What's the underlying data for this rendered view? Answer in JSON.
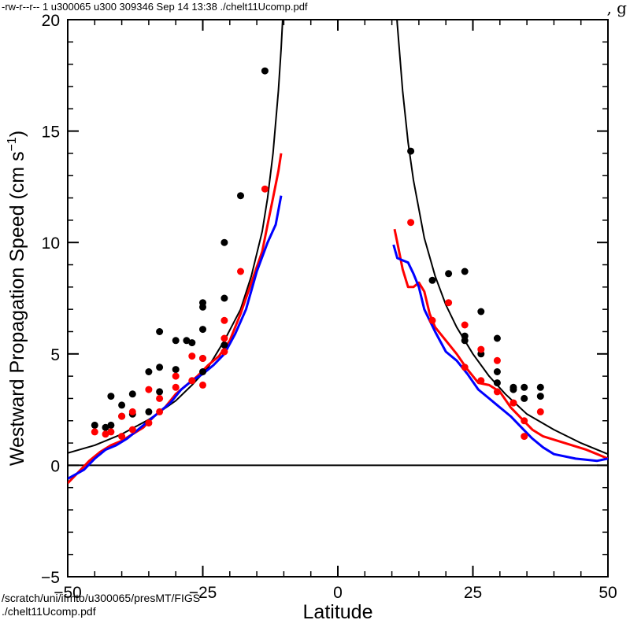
{
  "header": {
    "file_info": "-rw-r--r-- 1 u300065 u300 309346 Sep 14 13:38 ./chelt11Ucomp.pdf",
    "corner_glyph": ", g"
  },
  "footer": {
    "path_line1": "/scratch/uni/ifmto/u300065/presMT/FIGS",
    "path_line2": "./chelt11Ucomp.pdf"
  },
  "chart_data": {
    "type": "line",
    "xlabel": "Latitude",
    "ylabel": "Westward Propagation Speed (cm s",
    "ylabel_superscript": "−1",
    "ylabel_close": ")",
    "xlim": [
      -50,
      50
    ],
    "ylim": [
      -5,
      20
    ],
    "xticks": [
      -50,
      -25,
      0,
      25,
      50
    ],
    "xtick_labels": [
      "−50",
      "−25",
      "0",
      "25",
      "50"
    ],
    "yticks": [
      -5,
      0,
      5,
      10,
      15,
      20
    ],
    "ytick_labels": [
      "−5",
      "0",
      "5",
      "10",
      "15",
      "20"
    ],
    "zero_line": true,
    "colors": {
      "theory": "#000000",
      "black_points": "#000000",
      "red": "#ff0000",
      "blue": "#0000ff"
    },
    "series": [
      {
        "kind": "theory-curve-south",
        "color": "#000000",
        "points": [
          [
            -50,
            0.55
          ],
          [
            -45,
            0.9
          ],
          [
            -40,
            1.4
          ],
          [
            -35,
            2.05
          ],
          [
            -30,
            2.9
          ],
          [
            -27,
            3.6
          ],
          [
            -24,
            4.4
          ],
          [
            -21,
            5.6
          ],
          [
            -18,
            7.0
          ],
          [
            -16,
            8.5
          ],
          [
            -14,
            10.5
          ],
          [
            -13,
            12.0
          ],
          [
            -12,
            14.0
          ],
          [
            -11,
            16.8
          ],
          [
            -10.5,
            18.7
          ],
          [
            -10,
            21.0
          ]
        ]
      },
      {
        "kind": "theory-curve-north",
        "color": "#000000",
        "points": [
          [
            10.7,
            21.0
          ],
          [
            11,
            19.8
          ],
          [
            12,
            16.8
          ],
          [
            13,
            14.5
          ],
          [
            14,
            12.8
          ],
          [
            16,
            10.2
          ],
          [
            18,
            8.5
          ],
          [
            20,
            7.2
          ],
          [
            22,
            6.2
          ],
          [
            25,
            5.0
          ],
          [
            28,
            4.0
          ],
          [
            31,
            3.2
          ],
          [
            35,
            2.3
          ],
          [
            40,
            1.6
          ],
          [
            45,
            1.0
          ],
          [
            50,
            0.5
          ]
        ]
      },
      {
        "kind": "red-line-south",
        "color": "#ff0000",
        "points": [
          [
            -50,
            -0.8
          ],
          [
            -48,
            -0.3
          ],
          [
            -46,
            0.2
          ],
          [
            -44,
            0.6
          ],
          [
            -42,
            0.9
          ],
          [
            -40,
            1.1
          ],
          [
            -38,
            1.4
          ],
          [
            -36,
            1.7
          ],
          [
            -34,
            2.2
          ],
          [
            -32,
            2.6
          ],
          [
            -30,
            3.2
          ],
          [
            -28,
            3.6
          ],
          [
            -26,
            4.0
          ],
          [
            -24,
            4.5
          ],
          [
            -22,
            4.9
          ],
          [
            -20,
            5.6
          ],
          [
            -18,
            6.8
          ],
          [
            -16,
            8.2
          ],
          [
            -14,
            9.6
          ],
          [
            -13,
            10.8
          ],
          [
            -12,
            12.0
          ],
          [
            -11,
            13.2
          ],
          [
            -10.5,
            14.0
          ]
        ]
      },
      {
        "kind": "blue-line-south",
        "color": "#0000ff",
        "points": [
          [
            -50,
            -0.6
          ],
          [
            -47,
            -0.2
          ],
          [
            -45,
            0.3
          ],
          [
            -43,
            0.7
          ],
          [
            -41,
            0.9
          ],
          [
            -39,
            1.2
          ],
          [
            -37,
            1.6
          ],
          [
            -35,
            2.0
          ],
          [
            -33,
            2.4
          ],
          [
            -31,
            2.8
          ],
          [
            -29,
            3.4
          ],
          [
            -27,
            3.8
          ],
          [
            -25,
            4.1
          ],
          [
            -23,
            4.5
          ],
          [
            -21,
            5.0
          ],
          [
            -19,
            5.9
          ],
          [
            -17,
            7.0
          ],
          [
            -15,
            8.7
          ],
          [
            -13,
            10.0
          ],
          [
            -11.5,
            10.8
          ],
          [
            -10.5,
            12.1
          ]
        ]
      },
      {
        "kind": "red-line-north",
        "color": "#ff0000",
        "points": [
          [
            10.5,
            10.6
          ],
          [
            11,
            10.0
          ],
          [
            12,
            8.8
          ],
          [
            13,
            8.0
          ],
          [
            14,
            8.0
          ],
          [
            15,
            8.2
          ],
          [
            16,
            7.8
          ],
          [
            17,
            6.8
          ],
          [
            18,
            6.2
          ],
          [
            20,
            5.6
          ],
          [
            22,
            5.0
          ],
          [
            24,
            4.3
          ],
          [
            26,
            3.7
          ],
          [
            28,
            3.6
          ],
          [
            30,
            3.3
          ],
          [
            32,
            2.6
          ],
          [
            34,
            2.1
          ],
          [
            36,
            1.6
          ],
          [
            38,
            1.3
          ],
          [
            42,
            1.0
          ],
          [
            46,
            0.7
          ],
          [
            48,
            0.5
          ],
          [
            50,
            0.3
          ]
        ]
      },
      {
        "kind": "blue-line-north",
        "color": "#0000ff",
        "points": [
          [
            10.3,
            9.9
          ],
          [
            11,
            9.3
          ],
          [
            12,
            9.2
          ],
          [
            13,
            9.1
          ],
          [
            14,
            8.6
          ],
          [
            15,
            8.0
          ],
          [
            16,
            7.0
          ],
          [
            18,
            6.0
          ],
          [
            20,
            5.1
          ],
          [
            22,
            4.7
          ],
          [
            24,
            4.1
          ],
          [
            26,
            3.4
          ],
          [
            28,
            3.0
          ],
          [
            30,
            2.6
          ],
          [
            32,
            2.2
          ],
          [
            34,
            1.7
          ],
          [
            36,
            1.2
          ],
          [
            38,
            0.8
          ],
          [
            40,
            0.5
          ],
          [
            44,
            0.3
          ],
          [
            48,
            0.2
          ],
          [
            50,
            0.3
          ]
        ]
      }
    ],
    "points": [
      {
        "kind": "black-dots",
        "color": "#000000",
        "xy": [
          [
            -45,
            1.8
          ],
          [
            -43,
            1.7
          ],
          [
            -42,
            1.8
          ],
          [
            -42,
            3.1
          ],
          [
            -40,
            2.7
          ],
          [
            -40,
            2.2
          ],
          [
            -38,
            3.2
          ],
          [
            -38,
            2.3
          ],
          [
            -35,
            4.2
          ],
          [
            -35,
            2.4
          ],
          [
            -33,
            4.4
          ],
          [
            -33,
            3.3
          ],
          [
            -33,
            6.0
          ],
          [
            -30,
            5.6
          ],
          [
            -30,
            4.3
          ],
          [
            -28,
            5.6
          ],
          [
            -27,
            5.5
          ],
          [
            -25,
            7.3
          ],
          [
            -25,
            7.1
          ],
          [
            -25,
            6.1
          ],
          [
            -25,
            4.8
          ],
          [
            -25,
            4.2
          ],
          [
            -21,
            10.0
          ],
          [
            -21,
            7.5
          ],
          [
            -21,
            5.4
          ],
          [
            -18,
            12.1
          ],
          [
            -13.5,
            17.7
          ],
          [
            13.5,
            14.1
          ],
          [
            17.5,
            8.3
          ],
          [
            20.5,
            8.6
          ],
          [
            23.5,
            8.7
          ],
          [
            23.5,
            5.6
          ],
          [
            23.5,
            5.8
          ],
          [
            26.5,
            6.9
          ],
          [
            26.5,
            5.0
          ],
          [
            29.5,
            5.7
          ],
          [
            29.5,
            4.2
          ],
          [
            29.5,
            3.7
          ],
          [
            32.5,
            3.5
          ],
          [
            32.5,
            3.4
          ],
          [
            34.5,
            3.5
          ],
          [
            34.5,
            3.0
          ],
          [
            37.5,
            3.5
          ],
          [
            37.5,
            3.1
          ]
        ]
      },
      {
        "kind": "red-dots",
        "color": "#ff0000",
        "xy": [
          [
            -45,
            1.5
          ],
          [
            -43,
            1.4
          ],
          [
            -42,
            1.5
          ],
          [
            -40,
            1.3
          ],
          [
            -40,
            2.2
          ],
          [
            -38,
            2.4
          ],
          [
            -38,
            1.6
          ],
          [
            -35,
            3.4
          ],
          [
            -35,
            1.9
          ],
          [
            -33,
            3.0
          ],
          [
            -33,
            2.4
          ],
          [
            -30,
            3.5
          ],
          [
            -30,
            4.0
          ],
          [
            -27,
            3.8
          ],
          [
            -27,
            4.9
          ],
          [
            -25,
            3.6
          ],
          [
            -25,
            4.8
          ],
          [
            -21,
            6.5
          ],
          [
            -21,
            5.7
          ],
          [
            -21,
            5.1
          ],
          [
            -18,
            8.7
          ],
          [
            -13.5,
            12.4
          ],
          [
            13.5,
            10.9
          ],
          [
            17.5,
            6.5
          ],
          [
            20.5,
            7.3
          ],
          [
            23.5,
            6.3
          ],
          [
            23.5,
            4.4
          ],
          [
            26.5,
            5.2
          ],
          [
            26.5,
            3.8
          ],
          [
            29.5,
            4.7
          ],
          [
            29.5,
            3.3
          ],
          [
            32.5,
            2.8
          ],
          [
            32.5,
            2.8
          ],
          [
            34.5,
            2.0
          ],
          [
            34.5,
            1.3
          ],
          [
            37.5,
            2.4
          ]
        ]
      }
    ]
  }
}
